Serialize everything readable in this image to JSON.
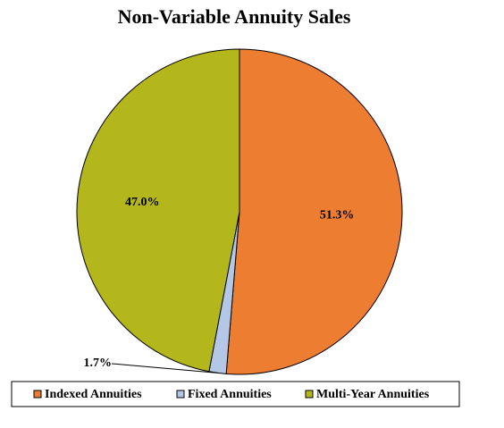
{
  "chart_data": {
    "type": "pie",
    "title": "Non-Variable Annuity Sales",
    "categories": [
      "Indexed Annuities",
      "Fixed Annuities",
      "Multi-Year Annuities"
    ],
    "values": [
      51.3,
      1.7,
      47.0
    ],
    "value_labels": [
      "51.3%",
      "1.7%",
      "47.0%"
    ],
    "colors": [
      "#ED7D31",
      "#B4C7E7",
      "#B3B71B"
    ],
    "legend": "bottom"
  }
}
